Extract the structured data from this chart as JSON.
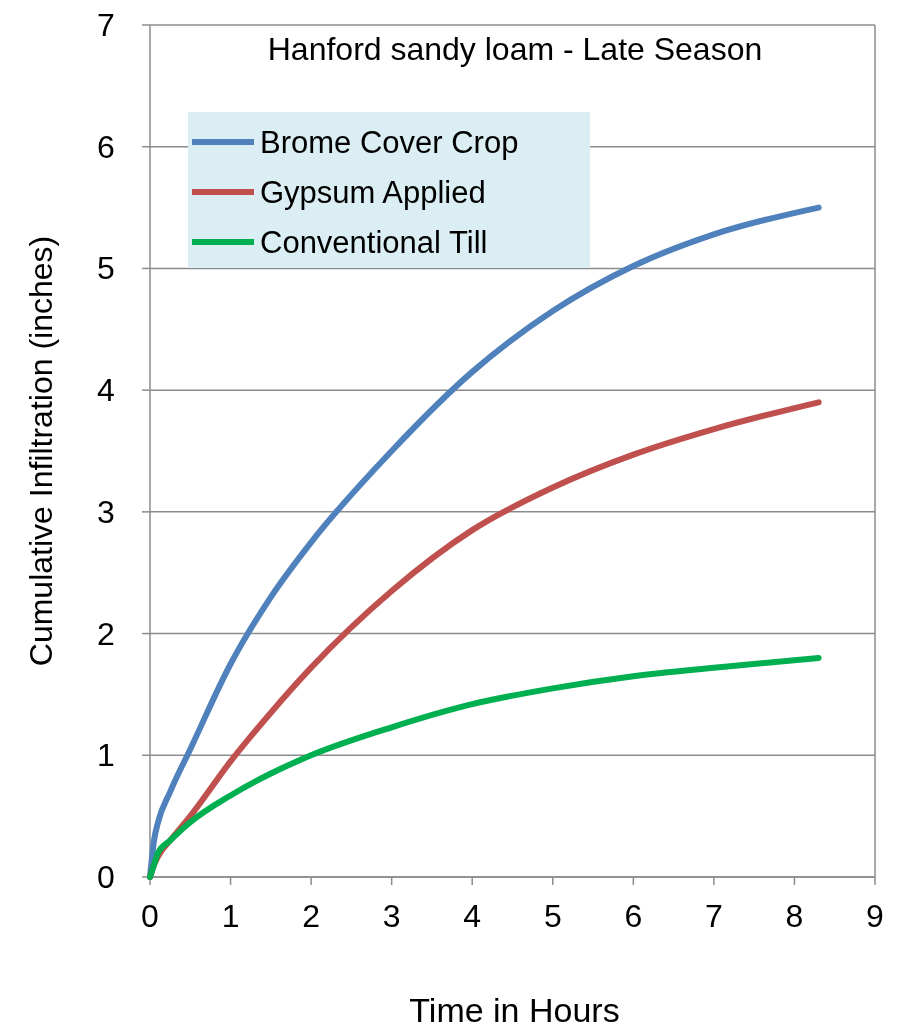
{
  "chart_data": {
    "type": "line",
    "title": "Hanford sandy loam  -  Late Season",
    "xlabel": "Time in Hours",
    "ylabel": "Cumulative Infiltration (inches)",
    "xlim": [
      0,
      9
    ],
    "xticks": [
      0,
      1,
      2,
      3,
      4,
      5,
      6,
      7,
      8,
      9
    ],
    "ylim": [
      0,
      7
    ],
    "yticks": [
      0,
      1,
      2,
      3,
      4,
      5,
      6,
      7
    ],
    "grid": "y",
    "legend": "top left",
    "marker": "none",
    "line_style": "solid",
    "x": [
      0,
      0.05,
      0.1,
      0.25,
      0.5,
      1,
      1.5,
      2,
      3,
      4,
      5,
      6,
      7,
      8.3
    ],
    "series": [
      {
        "name": "Brome Cover Crop",
        "color": "#4f81bd",
        "values": [
          0,
          0.3,
          0.45,
          0.7,
          1.05,
          1.75,
          2.3,
          2.75,
          3.5,
          4.15,
          4.65,
          5.02,
          5.28,
          5.5
        ]
      },
      {
        "name": "Gypsum Applied",
        "color": "#c0504d",
        "values": [
          0,
          0.1,
          0.17,
          0.3,
          0.5,
          0.95,
          1.35,
          1.72,
          2.35,
          2.85,
          3.2,
          3.47,
          3.68,
          3.9
        ]
      },
      {
        "name": "Conventional Till",
        "color": "#00b050",
        "values": [
          0,
          0.1,
          0.2,
          0.3,
          0.45,
          0.67,
          0.85,
          1.0,
          1.23,
          1.42,
          1.55,
          1.65,
          1.72,
          1.8
        ]
      }
    ]
  }
}
